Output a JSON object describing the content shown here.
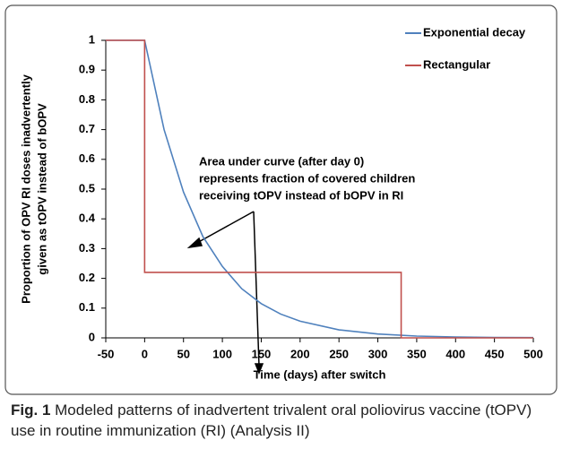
{
  "chart_data": {
    "type": "line",
    "ylabel": [
      "Proportion of OPV RI doses inadvertently",
      "given as tOPV instead of bOPV"
    ],
    "xlabel": "Time (days) after switch",
    "annotation": [
      "Area under curve (after day 0)",
      "represents fraction of covered children",
      "receiving tOPV instead of bOPV in RI"
    ],
    "series": [
      {
        "name": "Exponential decay",
        "color": "#4f81bd",
        "x": [
          -50,
          0,
          25,
          50,
          75,
          100,
          125,
          150,
          175,
          200,
          250,
          300,
          350,
          400,
          450,
          500
        ],
        "values": [
          1,
          1,
          0.7,
          0.49,
          0.34,
          0.24,
          0.165,
          0.115,
          0.08,
          0.056,
          0.027,
          0.013,
          0.006,
          0.003,
          0.0015,
          0.001
        ]
      },
      {
        "name": "Rectangular",
        "color": "#c0504d",
        "x": [
          -50,
          0,
          0,
          330,
          330,
          500
        ],
        "values": [
          1,
          1,
          0.22,
          0.22,
          0,
          0
        ]
      }
    ],
    "xlim": [
      -50,
      500
    ],
    "xticks": [
      -50,
      0,
      50,
      100,
      150,
      200,
      250,
      300,
      350,
      400,
      450,
      500
    ],
    "ylim": [
      0,
      1
    ],
    "yticks": [
      0,
      0.1,
      0.2,
      0.3,
      0.4,
      0.5,
      0.6,
      0.7,
      0.8,
      0.9,
      1
    ],
    "legend": "top-right"
  },
  "caption": {
    "label": "Fig. 1",
    "text": "Modeled patterns of inadvertent trivalent oral poliovirus vaccine (tOPV) use in routine immunization (RI) (Analysis II)"
  }
}
